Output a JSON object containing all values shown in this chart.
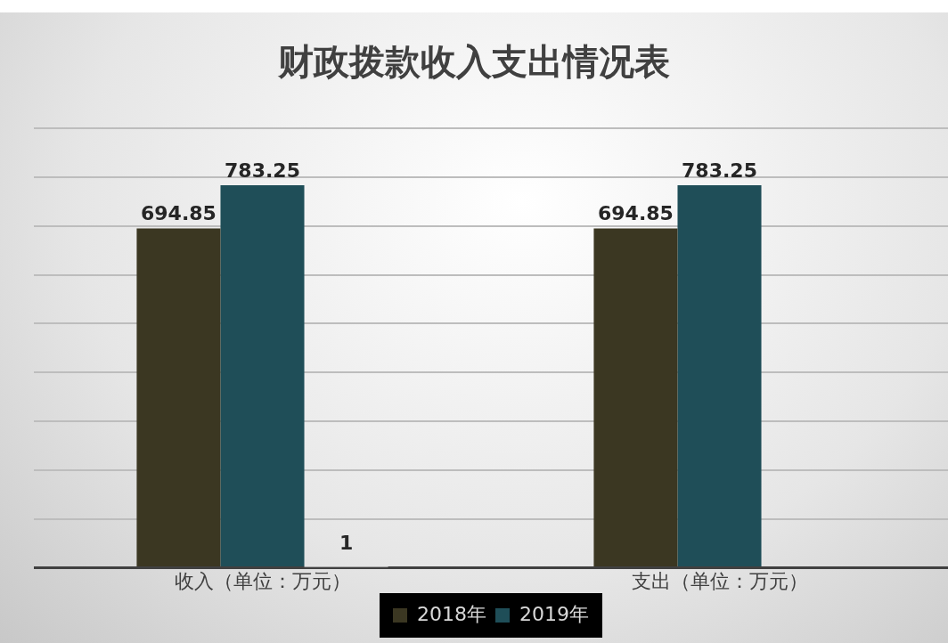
{
  "chart_data": {
    "type": "bar",
    "title": "财政拨款收入支出情况表",
    "categories": [
      "收入（单位：万元）",
      "支出（单位：万元）"
    ],
    "series": [
      {
        "name": "2018年",
        "color": "#3b3722",
        "values": [
          694.85,
          694.85
        ]
      },
      {
        "name": "2019年",
        "color": "#1f4e58",
        "values": [
          783.25,
          783.25
        ]
      },
      {
        "color": "#a5a5a5",
        "values": [
          1,
          null
        ]
      }
    ],
    "ylim": [
      0,
      900
    ],
    "yticks": [
      {
        "value": 0,
        "label": null
      },
      {
        "value": 100,
        "label": null
      },
      {
        "value": 200,
        "label": null
      },
      {
        "value": 300,
        "label": null
      },
      {
        "value": 400,
        "label": null
      },
      {
        "value": 500,
        "label": null
      },
      {
        "value": 600,
        "label": null
      },
      {
        "value": 700,
        "label": null
      },
      {
        "value": 800,
        "label": null
      },
      {
        "value": 900,
        "label": null
      }
    ],
    "grid": "y",
    "legend": "bottom",
    "tick_labels": "x",
    "data_labels": true
  }
}
